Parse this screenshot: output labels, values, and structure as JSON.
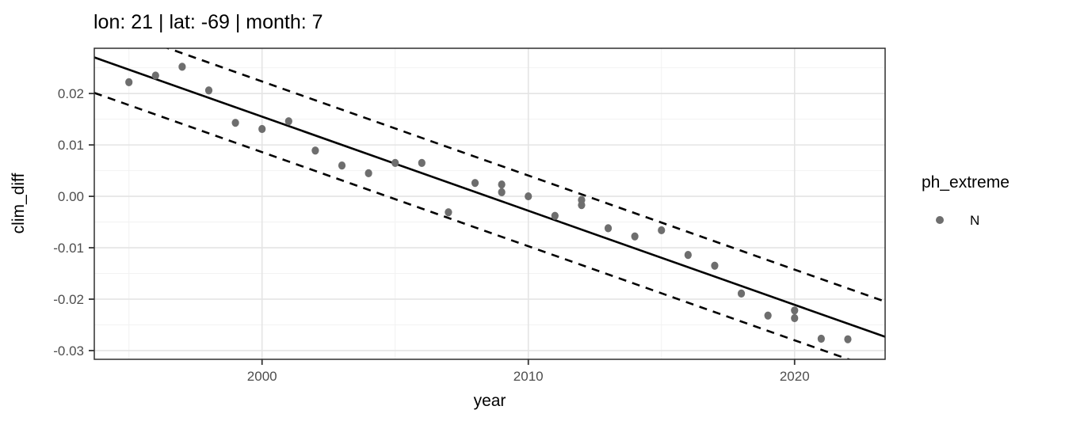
{
  "title": "lon: 21 | lat: -69 | month: 7",
  "chart_data": {
    "type": "scatter",
    "title": "lon: 21 | lat: -69 | month: 7",
    "xlabel": "year",
    "ylabel": "clim_diff",
    "xlim": [
      1993.7,
      2023.4
    ],
    "ylim": [
      -0.0317,
      0.0288
    ],
    "grid": "on",
    "x_ticks": {
      "values": [
        2000,
        2010,
        2020
      ],
      "labels": [
        "2000",
        "2010",
        "2020"
      ]
    },
    "y_ticks": {
      "values": [
        0.02,
        0.01,
        0.0,
        -0.01,
        -0.02,
        -0.03
      ],
      "labels": [
        "0.02",
        "0.01",
        "0.00",
        "-0.01",
        "-0.02",
        "-0.03"
      ]
    },
    "x_minor_ticks": [
      1995,
      2005,
      2015
    ],
    "y_minor_ticks": [
      0.025,
      0.015,
      0.005,
      -0.005,
      -0.015,
      -0.025
    ],
    "series": [
      {
        "name": "N",
        "color": "#6e6e6e",
        "points": [
          [
            1995,
            0.0222
          ],
          [
            1996,
            0.0235
          ],
          [
            1997,
            0.0252
          ],
          [
            1998,
            0.0206
          ],
          [
            1999,
            0.0143
          ],
          [
            2000,
            0.0131
          ],
          [
            2001,
            0.0146
          ],
          [
            2002,
            0.0089
          ],
          [
            2003,
            0.006
          ],
          [
            2004,
            0.0045
          ],
          [
            2005,
            0.0065
          ],
          [
            2006,
            0.0065
          ],
          [
            2007,
            -0.0031
          ],
          [
            2008,
            0.0026
          ],
          [
            2009,
            0.0023
          ],
          [
            2009,
            0.0008
          ],
          [
            2010,
            0.0
          ],
          [
            2011,
            -0.0038
          ],
          [
            2012,
            -0.0007
          ],
          [
            2012,
            -0.0017
          ],
          [
            2013,
            -0.0062
          ],
          [
            2014,
            -0.0078
          ],
          [
            2015,
            -0.0066
          ],
          [
            2016,
            -0.0114
          ],
          [
            2017,
            -0.0135
          ],
          [
            2018,
            -0.0189
          ],
          [
            2019,
            -0.0232
          ],
          [
            2020,
            -0.0222
          ],
          [
            2020,
            -0.0237
          ],
          [
            2021,
            -0.0277
          ],
          [
            2022,
            -0.0278
          ]
        ]
      }
    ],
    "trend_line": {
      "style": "solid",
      "value_at_2000": 0.0155,
      "slope_per_year": -0.00183
    },
    "band_lines": {
      "style": "dashed",
      "offset_upper": 0.00685,
      "offset_lower": -0.0069
    },
    "legend": {
      "position": "right",
      "title": "ph_extreme",
      "items": [
        {
          "label": "N",
          "marker": "circle",
          "color": "#6e6e6e"
        }
      ]
    },
    "colors": {
      "point": "#6e6e6e",
      "line": "#000000",
      "panel_border": "#2e2e2e",
      "grid_major": "#e4e4e4",
      "grid_minor": "#f2f2f2",
      "tick_text": "#4d4d4d",
      "background": "#ffffff"
    }
  }
}
